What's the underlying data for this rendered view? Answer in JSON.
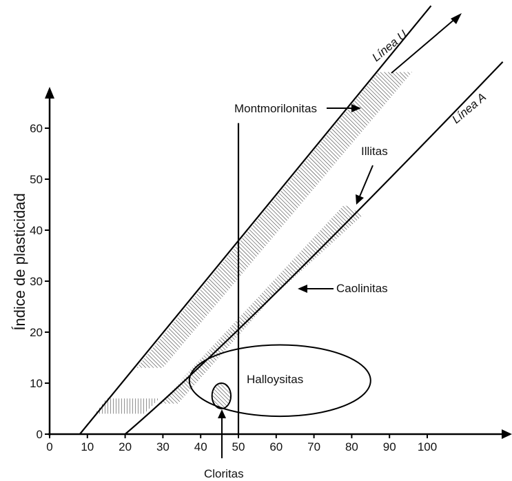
{
  "chart_data": {
    "type": "plasticity-chart",
    "ylabel": "Índice de plasticidad",
    "xlabel": "",
    "xlim": [
      0,
      120
    ],
    "ylim": [
      0,
      70
    ],
    "xticks": [
      0,
      10,
      20,
      30,
      40,
      50,
      60,
      70,
      80,
      90,
      100
    ],
    "yticks": [
      0,
      10,
      20,
      30,
      40,
      50,
      60
    ],
    "lines": [
      {
        "name": "Línea U",
        "points": [
          [
            8,
            0
          ],
          [
            101,
            84
          ]
        ]
      },
      {
        "name": "Línea A",
        "points": [
          [
            20,
            0
          ],
          [
            120,
            73
          ]
        ]
      },
      {
        "name": "",
        "points": [
          [
            50,
            0
          ],
          [
            50,
            61
          ]
        ]
      }
    ],
    "regions": [
      {
        "name": "Montmorilonitas",
        "polygon": [
          [
            23,
            13
          ],
          [
            30,
            13
          ],
          [
            96,
            71
          ],
          [
            87,
            71
          ]
        ]
      },
      {
        "name": "Illitas",
        "polygon": [
          [
            34,
            10
          ],
          [
            29,
            6
          ],
          [
            78,
            45
          ],
          [
            83,
            43
          ]
        ]
      },
      {
        "name": "Caolinitas",
        "polygon": [
          [
            34,
            6
          ],
          [
            29,
            6
          ],
          [
            59,
            28
          ],
          [
            64,
            31
          ]
        ]
      },
      {
        "name": "",
        "polygon": [
          [
            12,
            4
          ],
          [
            25,
            4
          ],
          [
            29,
            7
          ],
          [
            15,
            7
          ]
        ]
      },
      {
        "name": "Halloysitas",
        "ellipse": {
          "cx": 61,
          "cy": 10.5,
          "rx": 24,
          "ry": 7
        }
      },
      {
        "name": "Cloritas",
        "ellipse": {
          "cx": 45.5,
          "cy": 7.5,
          "rx": 2.5,
          "ry": 2.5
        }
      }
    ],
    "annotations": [
      "Línea U",
      "Línea A",
      "Montmorilonitas",
      "Illitas",
      "Caolinitas",
      "Halloysitas",
      "Cloritas"
    ]
  }
}
